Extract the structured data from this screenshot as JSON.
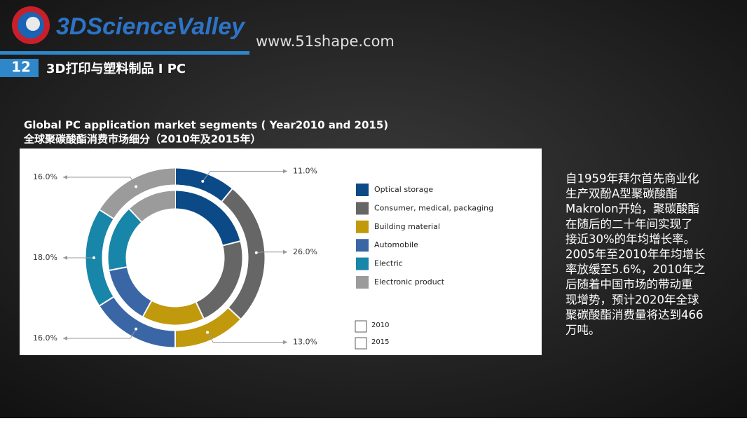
{
  "header": {
    "logo": "3DScienceValley",
    "url": "www.51shape.com",
    "slide_number": "12",
    "heading": "3D打印与塑料制品 I PC"
  },
  "chart_data": {
    "type": "donut",
    "title": "Global PC application market segments ( Year2010 and 2015)",
    "subtitle": "全球聚碳酸酯消费市场细分（2010年及2015年）",
    "categories": [
      "Optical storage",
      "Consumer, medical, packaging",
      "Building material",
      "Automobile",
      "Electric",
      "Electronic product"
    ],
    "colors": [
      "#0b4a86",
      "#666666",
      "#c09a0c",
      "#3a66a6",
      "#1886a8",
      "#9b9b9b"
    ],
    "series": [
      {
        "name": "2010",
        "values": [
          21,
          22,
          15,
          14,
          16,
          12
        ]
      },
      {
        "name": "2015",
        "values": [
          11,
          26,
          13,
          16,
          18,
          16
        ],
        "value_labels": [
          "11.0%",
          "26.0%",
          "13.0%",
          "16.0%",
          "18.0%",
          "16.0%"
        ]
      }
    ]
  },
  "body": {
    "lines": [
      "自1959年拜尔首先商业化",
      "生产双酚A型聚碳酸酯",
      "Makrolon开始，聚碳酸酯",
      "在随后的二十年间实现了",
      "接近30%的年均增长率。",
      "2005年至2010年年均增长",
      "率放缓至5.6%，2010年之",
      "后随着中国市场的带动重",
      "现增势，预计2020年全球",
      "聚碳酸酯消费量将达到466",
      "万吨。"
    ]
  }
}
